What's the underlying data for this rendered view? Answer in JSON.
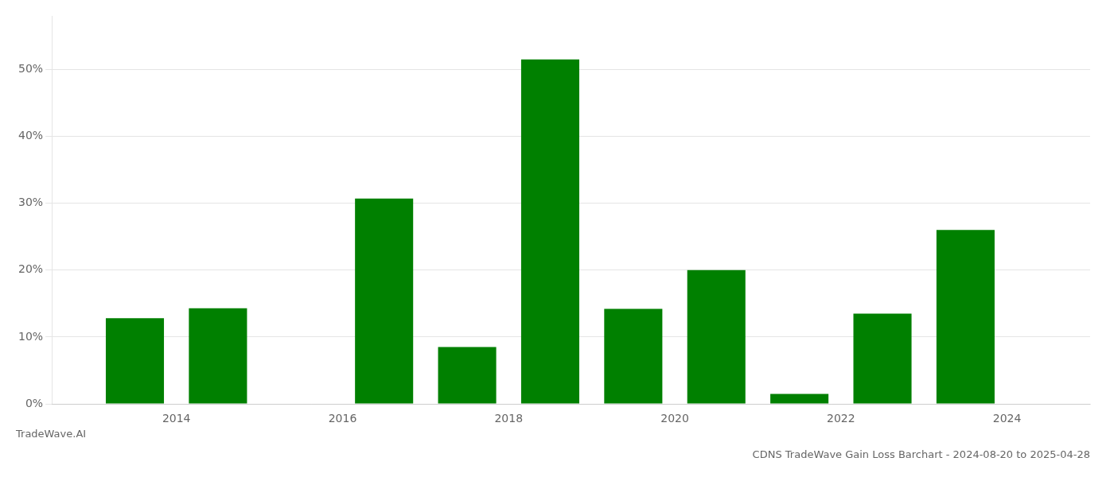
{
  "chart_data": {
    "type": "bar",
    "title": "CDNS TradeWave Gain Loss Barchart - 2024-08-20 to 2025-04-28",
    "subtitle": "TradeWave.AI",
    "x": [
      2013.5,
      2014.5,
      2016.5,
      2017.5,
      2018.5,
      2019.5,
      2020.5,
      2021.5,
      2022.5,
      2023.5
    ],
    "values": [
      0.128,
      0.143,
      0.307,
      0.085,
      0.515,
      0.142,
      0.2,
      0.015,
      0.135,
      0.26
    ],
    "color": "#008000",
    "xlim": [
      2012.5,
      2025.0
    ],
    "xticks": [
      2014,
      2016,
      2018,
      2020,
      2022,
      2024
    ],
    "ylim": [
      0,
      0.58
    ],
    "yticks": [
      {
        "value": 0.0,
        "label": "0%"
      },
      {
        "value": 0.1,
        "label": "10%"
      },
      {
        "value": 0.2,
        "label": "20%"
      },
      {
        "value": 0.3,
        "label": "30%"
      },
      {
        "value": 0.4,
        "label": "40%"
      },
      {
        "value": 0.5,
        "label": "50%"
      }
    ],
    "grid": true
  }
}
